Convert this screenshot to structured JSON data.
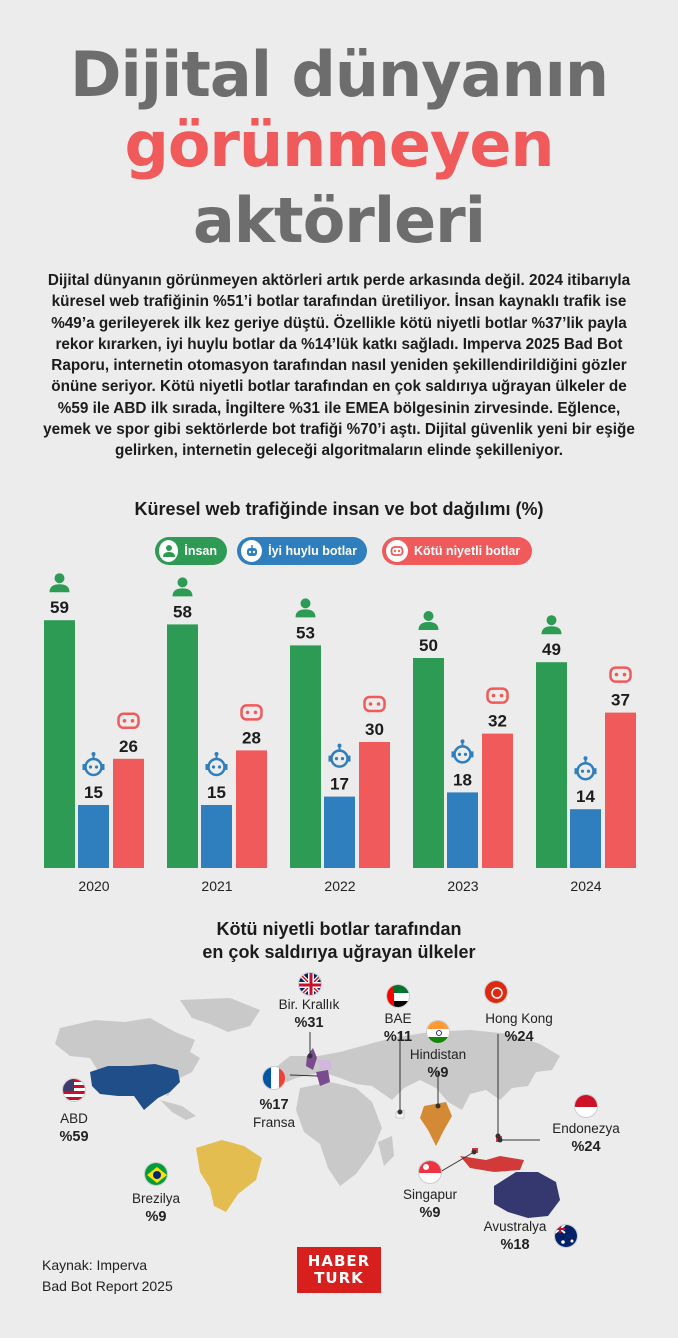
{
  "title": {
    "line1": "Dijital dünyanın",
    "line2": "görünmeyen",
    "line3": "aktörleri"
  },
  "intro": "Dijital dünyanın görünmeyen aktörleri artık perde arkasında değil. 2024 itibarıyla küresel web trafiğinin %51’i botlar tarafından üretiliyor. İnsan kaynaklı trafik ise %49’a gerileyerek ilk kez geriye düştü. Özellikle kötü niyetli botlar %37’lik payla rekor kırarken, iyi huylu botlar da %14’lük katkı sağladı. Imperva 2025 Bad Bot Raporu, internetin otomasyon tarafından nasıl yeniden şekillendirildiğini gözler önüne seriyor. Kötü niyetli botlar tarafından en çok saldırıya uğrayan ülkeler de %59 ile ABD ilk sırada, İngiltere %31 ile EMEA bölgesinin zirvesinde. Eğlence, yemek ve spor gibi sektörlerde bot trafiği %70’i aştı. Dijital güvenlik yeni bir eşiğe gelirken, internetin geleceği algoritmaların elinde şekilleniyor.",
  "colors": {
    "insan": "#2e9b55",
    "iyi": "#2f7ebd",
    "kotu": "#f05a5a",
    "title_grey": "#6d6d6d"
  },
  "chart_data": {
    "type": "bar",
    "title": "Küresel web trafiğinde insan ve bot dağılımı (%)",
    "categories": [
      "2020",
      "2021",
      "2022",
      "2023",
      "2024"
    ],
    "series": [
      {
        "name": "İnsan",
        "icon": "person-icon",
        "values": [
          59,
          58,
          53,
          50,
          49
        ]
      },
      {
        "name": "İyi huylu botlar",
        "icon": "robot-icon",
        "values": [
          15,
          15,
          17,
          18,
          14
        ]
      },
      {
        "name": "Kötü niyetli botlar",
        "icon": "bad-bot-icon",
        "values": [
          26,
          28,
          30,
          32,
          37
        ]
      }
    ],
    "ylim": [
      0,
      60
    ]
  },
  "map": {
    "title_line1": "Kötü niyetli botlar tarafından",
    "title_line2": "en çok saldırıya uğrayan ülkeler",
    "countries": [
      {
        "name": "ABD",
        "pct": "%59",
        "flag": "us-flag-icon"
      },
      {
        "name": "Bir. Krallık",
        "pct": "%31",
        "flag": "uk-flag-icon"
      },
      {
        "name": "Fransa",
        "pct": "%17",
        "flag": "france-flag-icon"
      },
      {
        "name": "BAE",
        "pct": "%11",
        "flag": "uae-flag-icon"
      },
      {
        "name": "Hindistan",
        "pct": "%9",
        "flag": "india-flag-icon"
      },
      {
        "name": "Hong Kong",
        "pct": "%24",
        "flag": "hong-kong-flag-icon"
      },
      {
        "name": "Endonezya",
        "pct": "%24",
        "flag": "indonesia-flag-icon"
      },
      {
        "name": "Brezilya",
        "pct": "%9",
        "flag": "brazil-flag-icon"
      },
      {
        "name": "Singapur",
        "pct": "%9",
        "flag": "singapore-flag-icon"
      },
      {
        "name": "Avustralya",
        "pct": "%18",
        "flag": "australia-flag-icon"
      }
    ]
  },
  "source": {
    "line1": "Kaynak: Imperva",
    "line2": "Bad Bot Report 2025"
  },
  "logo": {
    "line1": "HABER",
    "line2": "TURK"
  }
}
